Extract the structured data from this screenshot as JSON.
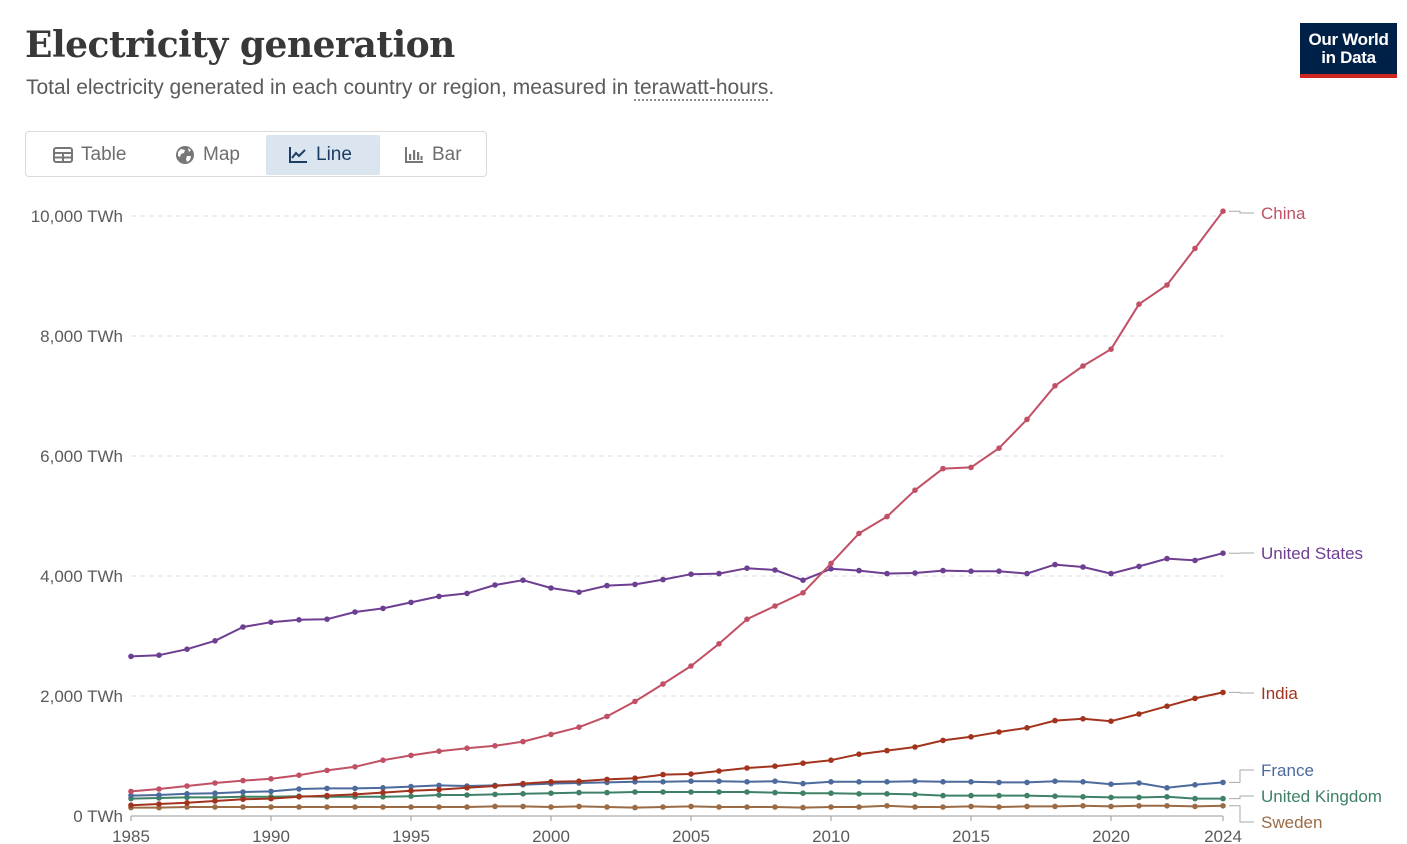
{
  "header": {
    "title": "Electricity generation",
    "subtitle_prefix": "Total electricity generated in each country or region, measured in ",
    "subtitle_term": "terawatt-hours",
    "subtitle_suffix": "."
  },
  "logo": {
    "line1": "Our World",
    "line2": "in Data",
    "bg_color": "#002147",
    "accent_color": "#ce261e"
  },
  "tabs": [
    {
      "label": "Table",
      "icon": "table-icon",
      "active": false
    },
    {
      "label": "Map",
      "icon": "globe-icon",
      "active": false
    },
    {
      "label": "Line",
      "icon": "line-chart-icon",
      "active": true
    },
    {
      "label": "Bar",
      "icon": "bar-chart-icon",
      "active": false
    }
  ],
  "chart_data": {
    "type": "line",
    "xlabel": "",
    "ylabel": "",
    "y_unit": "TWh",
    "ylim": [
      0,
      10000
    ],
    "xlim": [
      1985,
      2024
    ],
    "y_ticks": [
      0,
      2000,
      4000,
      6000,
      8000,
      10000
    ],
    "y_tick_labels": [
      "0 TWh",
      "2,000 TWh",
      "4,000 TWh",
      "6,000 TWh",
      "8,000 TWh",
      "10,000 TWh"
    ],
    "x_ticks": [
      1985,
      1990,
      1995,
      2000,
      2005,
      2010,
      2015,
      2020,
      2024
    ],
    "x_tick_labels": [
      "1985",
      "1990",
      "1995",
      "2000",
      "2005",
      "2010",
      "2015",
      "2020",
      "2024"
    ],
    "grid": true,
    "legend": "line-end labels at right",
    "x": [
      1985,
      1986,
      1987,
      1988,
      1989,
      1990,
      1991,
      1992,
      1993,
      1994,
      1995,
      1996,
      1997,
      1998,
      1999,
      2000,
      2001,
      2002,
      2003,
      2004,
      2005,
      2006,
      2007,
      2008,
      2009,
      2010,
      2011,
      2012,
      2013,
      2014,
      2015,
      2016,
      2017,
      2018,
      2019,
      2020,
      2021,
      2022,
      2023,
      2024
    ],
    "series": [
      {
        "name": "China",
        "color": "#c15065",
        "values": [
          410,
          450,
          500,
          550,
          590,
          620,
          680,
          760,
          820,
          930,
          1010,
          1080,
          1130,
          1170,
          1240,
          1360,
          1480,
          1660,
          1910,
          2200,
          2500,
          2870,
          3280,
          3500,
          3720,
          4210,
          4710,
          4990,
          5430,
          5790,
          5810,
          6130,
          6610,
          7170,
          7500,
          7780,
          8530,
          8850,
          9460,
          10080
        ]
      },
      {
        "name": "United States",
        "color": "#6d3e91",
        "values": [
          2660,
          2680,
          2780,
          2920,
          3150,
          3230,
          3270,
          3280,
          3400,
          3460,
          3560,
          3660,
          3710,
          3850,
          3930,
          3800,
          3730,
          3840,
          3860,
          3940,
          4030,
          4040,
          4130,
          4100,
          3930,
          4120,
          4090,
          4040,
          4050,
          4090,
          4080,
          4080,
          4040,
          4190,
          4150,
          4040,
          4160,
          4290,
          4260,
          4380
        ]
      },
      {
        "name": "India",
        "color": "#a2331c",
        "values": [
          180,
          200,
          220,
          250,
          280,
          290,
          320,
          340,
          360,
          390,
          420,
          440,
          470,
          500,
          540,
          570,
          580,
          610,
          630,
          690,
          700,
          750,
          800,
          830,
          880,
          930,
          1030,
          1090,
          1150,
          1260,
          1320,
          1400,
          1470,
          1590,
          1620,
          1580,
          1700,
          1830,
          1960,
          2060
        ]
      },
      {
        "name": "France",
        "color": "#4c6a9c",
        "values": [
          340,
          350,
          370,
          380,
          400,
          410,
          450,
          460,
          460,
          470,
          490,
          510,
          500,
          510,
          520,
          540,
          550,
          560,
          570,
          570,
          580,
          580,
          570,
          580,
          540,
          570,
          570,
          570,
          580,
          570,
          570,
          560,
          560,
          580,
          570,
          530,
          550,
          470,
          520,
          560
        ]
      },
      {
        "name": "United Kingdom",
        "color": "#3f8166",
        "values": [
          290,
          300,
          310,
          310,
          320,
          320,
          330,
          320,
          320,
          320,
          330,
          350,
          350,
          360,
          370,
          380,
          390,
          390,
          400,
          400,
          400,
          400,
          400,
          390,
          380,
          380,
          370,
          370,
          360,
          340,
          340,
          340,
          340,
          330,
          320,
          310,
          310,
          320,
          290,
          290
        ]
      },
      {
        "name": "Sweden",
        "color": "#9a6b45",
        "values": [
          140,
          140,
          150,
          150,
          150,
          150,
          150,
          150,
          150,
          150,
          150,
          150,
          150,
          160,
          160,
          150,
          160,
          150,
          140,
          150,
          160,
          150,
          150,
          150,
          140,
          150,
          150,
          170,
          150,
          150,
          160,
          150,
          160,
          160,
          170,
          160,
          170,
          170,
          160,
          170
        ]
      }
    ]
  }
}
